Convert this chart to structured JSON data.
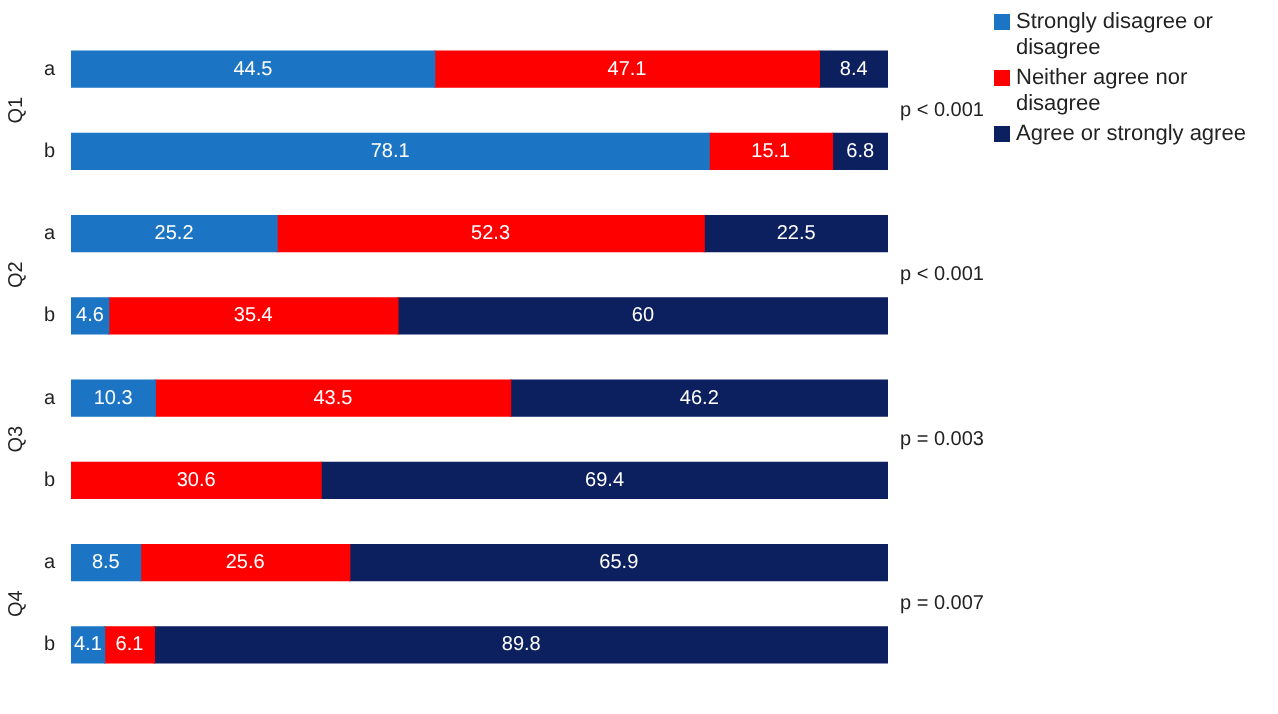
{
  "chart_data": {
    "type": "bar",
    "orientation": "horizontal",
    "stacked": true,
    "categories": [
      "a",
      "b",
      "a",
      "b",
      "a",
      "b",
      "a",
      "b"
    ],
    "series": [
      {
        "name": "Strongly disagree or disagree",
        "color": "#1b75c4",
        "values": [
          44.5,
          78.1,
          25.2,
          4.6,
          10.3,
          null,
          8.5,
          4.1
        ]
      },
      {
        "name": "Neither agree nor disagree",
        "color": "#ff0000",
        "values": [
          47.1,
          15.1,
          52.3,
          35.4,
          43.5,
          30.6,
          25.6,
          6.1
        ]
      },
      {
        "name": "Agree or strongly agree",
        "color": "#0c1f5e",
        "values": [
          8.4,
          6.8,
          22.5,
          60,
          46.2,
          69.4,
          65.9,
          89.8
        ]
      }
    ],
    "xlim": [
      0,
      100
    ],
    "tick_labels": "y",
    "grid": false,
    "legend": "top right",
    "data_labels": true,
    "annotations": [
      "Q1",
      "Q2",
      "Q3",
      "Q4",
      "p < 0.001",
      "p < 0.001",
      "p = 0.003",
      "p = 0.007"
    ]
  }
}
